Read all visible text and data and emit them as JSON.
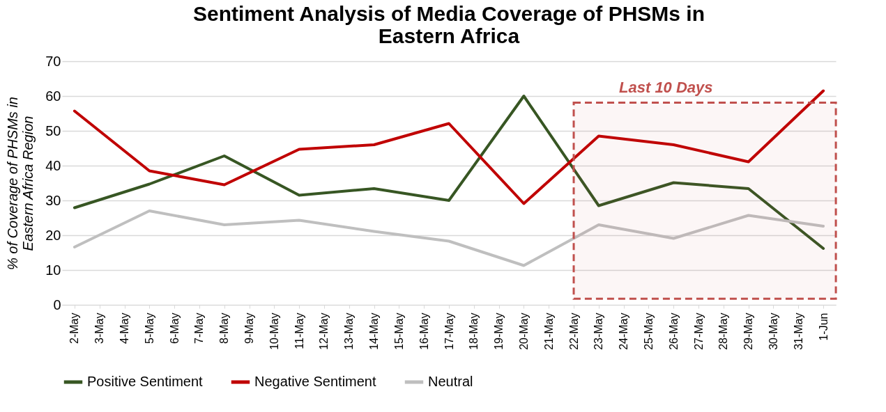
{
  "chart_data": {
    "type": "line",
    "title": "Sentiment Analysis of Media Coverage of PHSMs in Eastern Africa",
    "ylabel": "% of Coverage of PHSMs in Eastern Africa Region",
    "categories": [
      "2-May",
      "3-May",
      "4-May",
      "5-May",
      "6-May",
      "7-May",
      "8-May",
      "9-May",
      "10-May",
      "11-May",
      "12-May",
      "13-May",
      "14-May",
      "15-May",
      "16-May",
      "17-May",
      "18-May",
      "19-May",
      "20-May",
      "21-May",
      "22-May",
      "23-May",
      "24-May",
      "25-May",
      "26-May",
      "27-May",
      "28-May",
      "29-May",
      "30-May",
      "31-May",
      "1-Jun"
    ],
    "series": [
      {
        "name": "Positive Sentiment",
        "color": "#375623",
        "x": [
          "2-May",
          "5-May",
          "8-May",
          "11-May",
          "14-May",
          "17-May",
          "20-May",
          "23-May",
          "26-May",
          "29-May",
          "1-Jun"
        ],
        "values": [
          27.9,
          34.7,
          42.8,
          31.5,
          33.4,
          30.0,
          60.0,
          28.5,
          35.1,
          33.4,
          16.2
        ]
      },
      {
        "name": "Negative Sentiment",
        "color": "#c00000",
        "x": [
          "2-May",
          "5-May",
          "8-May",
          "11-May",
          "14-May",
          "17-May",
          "20-May",
          "23-May",
          "26-May",
          "29-May",
          "1-Jun"
        ],
        "values": [
          55.7,
          38.5,
          34.5,
          44.7,
          46.0,
          52.1,
          29.1,
          48.5,
          46.0,
          41.1,
          61.5
        ]
      },
      {
        "name": "Neutral",
        "color": "#bfbfbf",
        "x": [
          "2-May",
          "5-May",
          "8-May",
          "11-May",
          "14-May",
          "17-May",
          "20-May",
          "23-May",
          "26-May",
          "29-May",
          "1-Jun"
        ],
        "values": [
          16.6,
          27.0,
          23.0,
          24.3,
          21.1,
          18.3,
          11.3,
          23.0,
          19.1,
          25.7,
          22.6
        ]
      }
    ],
    "ylim": [
      0,
      70
    ],
    "yticks": [
      0,
      10,
      20,
      30,
      40,
      50,
      60,
      70
    ],
    "grid": "y",
    "legend": "bottom",
    "line_style": "solid",
    "bands": [
      {
        "axis": "x",
        "from": "22-May",
        "to": "1-Jun",
        "label": "Last 10 Days",
        "color": "#c0504d"
      }
    ]
  }
}
